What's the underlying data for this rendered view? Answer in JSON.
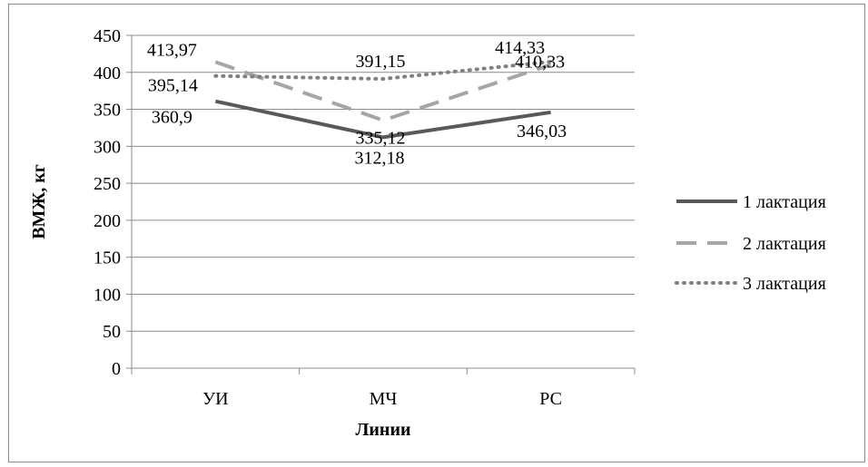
{
  "chart_data": {
    "type": "line",
    "categories": [
      "УИ",
      "МЧ",
      "РС"
    ],
    "series": [
      {
        "name": "1 лактация",
        "values": [
          360.9,
          312.18,
          346.03
        ],
        "labels": [
          "360,9",
          "312,18",
          "346,03"
        ],
        "color": "#595959",
        "dash": "solid"
      },
      {
        "name": "2 лактация",
        "values": [
          413.97,
          335.12,
          410.33
        ],
        "labels": [
          "413,97",
          "335,12",
          "410,33"
        ],
        "color": "#a6a6a6",
        "dash": "dashed"
      },
      {
        "name": "3 лактация",
        "values": [
          395.14,
          391.15,
          414.33
        ],
        "labels": [
          "395,14",
          "391,15",
          "414,33"
        ],
        "color": "#808080",
        "dash": "dotted"
      }
    ],
    "yticks": [
      "0",
      "50",
      "100",
      "150",
      "200",
      "250",
      "300",
      "350",
      "400",
      "450"
    ],
    "ylim": [
      0,
      450
    ],
    "xlabel": "Линии",
    "ylabel": "ВМЖ, кг",
    "grid": true,
    "legend_position": "right"
  }
}
